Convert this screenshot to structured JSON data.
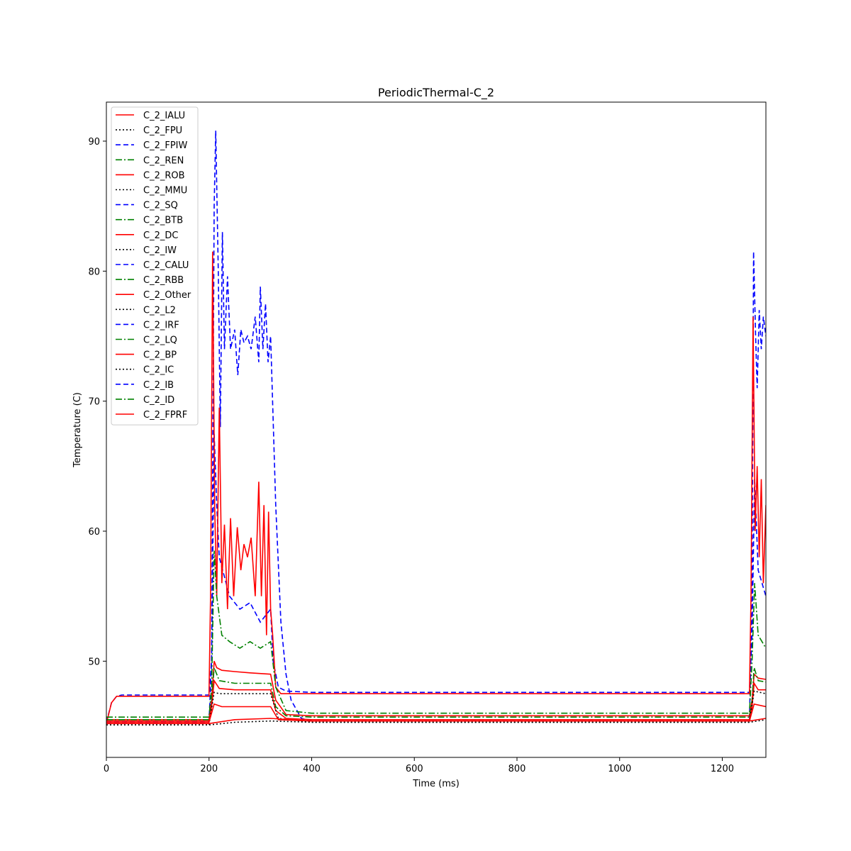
{
  "chart_data": {
    "type": "line",
    "title": "PeriodicThermal-C_2",
    "xlabel": "Time (ms)",
    "ylabel": "Temperature (C)",
    "xlim": [
      0,
      1285
    ],
    "ylim": [
      42.6,
      93
    ],
    "xticks": [
      0,
      200,
      400,
      600,
      800,
      1000,
      1200
    ],
    "yticks": [
      50,
      60,
      70,
      80,
      90
    ],
    "grid": false,
    "legend_position": "upper-left",
    "colors": {
      "red": "#ff0000",
      "black": "#000000",
      "blue": "#0000ff",
      "green": "#008000"
    },
    "legend": [
      {
        "name": "C_2_IALU",
        "color": "#ff0000",
        "style": "solid"
      },
      {
        "name": "C_2_FPU",
        "color": "#000000",
        "style": "dotted"
      },
      {
        "name": "C_2_FPIW",
        "color": "#0000ff",
        "style": "dashed"
      },
      {
        "name": "C_2_REN",
        "color": "#008000",
        "style": "dashdot"
      },
      {
        "name": "C_2_ROB",
        "color": "#ff0000",
        "style": "solid"
      },
      {
        "name": "C_2_MMU",
        "color": "#000000",
        "style": "dotted"
      },
      {
        "name": "C_2_SQ",
        "color": "#0000ff",
        "style": "dashed"
      },
      {
        "name": "C_2_BTB",
        "color": "#008000",
        "style": "dashdot"
      },
      {
        "name": "C_2_DC",
        "color": "#ff0000",
        "style": "solid"
      },
      {
        "name": "C_2_IW",
        "color": "#000000",
        "style": "dotted"
      },
      {
        "name": "C_2_CALU",
        "color": "#0000ff",
        "style": "dashed"
      },
      {
        "name": "C_2_RBB",
        "color": "#008000",
        "style": "dashdot"
      },
      {
        "name": "C_2_Other",
        "color": "#ff0000",
        "style": "solid"
      },
      {
        "name": "C_2_L2",
        "color": "#000000",
        "style": "dotted"
      },
      {
        "name": "C_2_IRF",
        "color": "#0000ff",
        "style": "dashed"
      },
      {
        "name": "C_2_LQ",
        "color": "#008000",
        "style": "dashdot"
      },
      {
        "name": "C_2_BP",
        "color": "#ff0000",
        "style": "solid"
      },
      {
        "name": "C_2_IC",
        "color": "#000000",
        "style": "dotted"
      },
      {
        "name": "C_2_IB",
        "color": "#0000ff",
        "style": "dashed"
      },
      {
        "name": "C_2_ID",
        "color": "#008000",
        "style": "dashdot"
      },
      {
        "name": "C_2_FPRF",
        "color": "#ff0000",
        "style": "solid"
      }
    ],
    "series": [
      {
        "name": "C_2_IB",
        "color": "#0000ff",
        "style": "dashed",
        "x": [
          0,
          200,
          205,
          210,
          213,
          218,
          222,
          226,
          230,
          236,
          242,
          250,
          256,
          262,
          268,
          275,
          282,
          290,
          297,
          300,
          305,
          310,
          315,
          320,
          330,
          340,
          350,
          360,
          380,
          400,
          1253,
          1258,
          1261,
          1265,
          1268,
          1272,
          1276,
          1280,
          1285
        ],
        "y": [
          45.3,
          45.3,
          50,
          85,
          90.8,
          80,
          68,
          83,
          74,
          79.6,
          74,
          75.5,
          72,
          75.5,
          74.5,
          75,
          74,
          76.5,
          73,
          78.8,
          74,
          77.5,
          73,
          75,
          62,
          53,
          49,
          47,
          45.6,
          45.4,
          45.4,
          55,
          81.5,
          75,
          71,
          77,
          74,
          76.5,
          75
        ]
      },
      {
        "name": "C_2_IRF",
        "color": "#0000ff",
        "style": "dashed",
        "x": [
          0,
          10,
          20,
          30,
          200,
          205,
          210,
          215,
          220,
          240,
          260,
          280,
          300,
          320,
          325,
          335,
          350,
          400,
          1253,
          1258,
          1263,
          1270,
          1285
        ],
        "y": [
          45.3,
          46.8,
          47.3,
          47.4,
          47.4,
          50,
          67.5,
          62,
          58,
          55,
          54,
          54.5,
          53,
          54,
          50,
          48,
          47.7,
          47.6,
          47.6,
          52,
          64,
          57,
          55
        ]
      },
      {
        "name": "C_2_Other",
        "color": "#ff0000",
        "style": "solid",
        "x": [
          0,
          10,
          20,
          30,
          200,
          203,
          207,
          211,
          215,
          220,
          225,
          230,
          236,
          242,
          248,
          255,
          262,
          268,
          275,
          282,
          290,
          297,
          302,
          307,
          312,
          316,
          320,
          324,
          330,
          340,
          400,
          1253,
          1256,
          1260,
          1264,
          1268,
          1272,
          1276,
          1280,
          1285
        ],
        "y": [
          45.2,
          46.8,
          47.3,
          47.3,
          47.3,
          55,
          81.5,
          62,
          55,
          69.5,
          56,
          60.5,
          54,
          61,
          55,
          60.3,
          57,
          59,
          58,
          59.5,
          55,
          63.8,
          55,
          62,
          52,
          61.5,
          54,
          52,
          48,
          47.5,
          47.5,
          47.5,
          55,
          76.5,
          60,
          65,
          58,
          64,
          56,
          62
        ]
      },
      {
        "name": "C_2_ID",
        "color": "#008000",
        "style": "dashdot",
        "x": [
          0,
          200,
          205,
          210,
          215,
          225,
          240,
          260,
          280,
          300,
          320,
          330,
          350,
          400,
          1253,
          1258,
          1263,
          1270,
          1285
        ],
        "y": [
          45.7,
          45.7,
          48,
          58.5,
          55,
          52,
          51.5,
          51,
          51.5,
          51,
          51.5,
          48,
          46.2,
          46,
          46,
          50,
          56,
          52,
          51
        ]
      },
      {
        "name": "C_2_FPRF",
        "color": "#ff0000",
        "style": "solid",
        "x": [
          0,
          200,
          205,
          210,
          215,
          225,
          250,
          280,
          320,
          330,
          350,
          400,
          1253,
          1258,
          1262,
          1270,
          1285
        ],
        "y": [
          45.5,
          45.5,
          47,
          50,
          49.5,
          49.3,
          49.2,
          49.1,
          49,
          47,
          45.9,
          45.8,
          45.8,
          47,
          49,
          48.7,
          48.6
        ]
      },
      {
        "name": "C_2_LQ",
        "color": "#008000",
        "style": "dashdot",
        "x": [
          0,
          200,
          205,
          210,
          220,
          250,
          320,
          330,
          350,
          400,
          1253,
          1258,
          1262,
          1270,
          1285
        ],
        "y": [
          45.5,
          45.5,
          47,
          49.5,
          48.5,
          48.3,
          48.3,
          46.5,
          45.8,
          45.7,
          45.7,
          47,
          49.5,
          48.5,
          48.4
        ]
      },
      {
        "name": "C_2_BP",
        "color": "#ff0000",
        "style": "solid",
        "x": [
          0,
          200,
          205,
          210,
          220,
          250,
          320,
          330,
          350,
          400,
          1253,
          1258,
          1262,
          1270,
          1285
        ],
        "y": [
          45.4,
          45.4,
          46.5,
          48.5,
          47.9,
          47.8,
          47.8,
          46.2,
          45.6,
          45.5,
          45.5,
          46.5,
          48.3,
          47.8,
          47.8
        ]
      },
      {
        "name": "C_2_IC",
        "color": "#000000",
        "style": "dotted",
        "x": [
          0,
          200,
          210,
          220,
          320,
          335,
          400,
          1253,
          1262,
          1285
        ],
        "y": [
          45.1,
          45.1,
          47.6,
          47.5,
          47.5,
          45.6,
          45.3,
          45.3,
          47.7,
          47.5
        ]
      },
      {
        "name": "C_2_DC",
        "color": "#ff0000",
        "style": "solid",
        "x": [
          0,
          200,
          210,
          225,
          320,
          335,
          400,
          1253,
          1262,
          1285
        ],
        "y": [
          45.3,
          45.3,
          46.7,
          46.5,
          46.5,
          45.5,
          45.4,
          45.4,
          46.7,
          46.5
        ]
      },
      {
        "name": "C_2_L2",
        "color": "#000000",
        "style": "dotted",
        "x": [
          0,
          200,
          250,
          320,
          400,
          1253,
          1285
        ],
        "y": [
          45.1,
          45.1,
          45.3,
          45.4,
          45.3,
          45.3,
          45.5
        ]
      },
      {
        "name": "C_2_IALU",
        "color": "#ff0000",
        "style": "solid",
        "x": [
          0,
          200,
          250,
          320,
          400,
          1253,
          1285
        ],
        "y": [
          45.2,
          45.2,
          45.5,
          45.6,
          45.4,
          45.4,
          45.6
        ]
      }
    ]
  }
}
